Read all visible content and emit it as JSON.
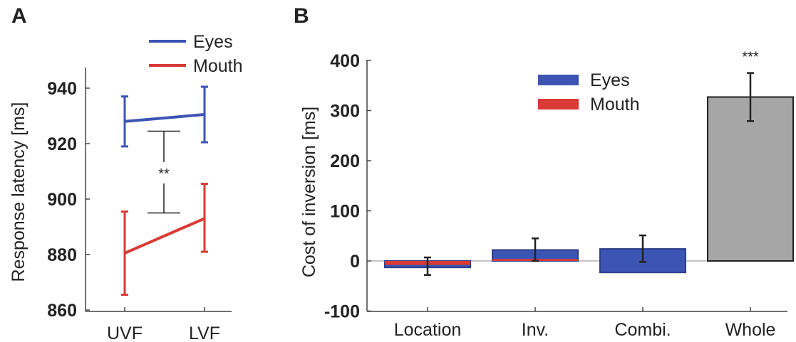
{
  "panels": {
    "a_label": "A",
    "b_label": "B"
  },
  "colors": {
    "eyes": "#3c55b4",
    "mouth": "#d93a35",
    "whole": "#a6a6a6",
    "axis": "#444444",
    "err": "#222222"
  },
  "chart_data": [
    {
      "type": "line",
      "panel": "A",
      "x": [
        "UVF",
        "LVF"
      ],
      "ylabel": "Response latency [ms]",
      "xlabel": "",
      "ylim": [
        860,
        945
      ],
      "yticks": [
        860,
        880,
        900,
        920,
        940
      ],
      "grid": false,
      "legend_position": "top",
      "series": [
        {
          "name": "Eyes",
          "color_key": "eyes",
          "values": [
            928,
            930.5
          ],
          "err_low": [
            919,
            920.5
          ],
          "err_high": [
            937,
            940.5
          ]
        },
        {
          "name": "Mouth",
          "color_key": "mouth",
          "values": [
            880.5,
            893
          ],
          "err_low": [
            865.5,
            881
          ],
          "err_high": [
            895.5,
            905.5
          ]
        }
      ],
      "annotation": {
        "text": "**",
        "between": [
          "Eyes",
          "Mouth"
        ],
        "y_top": 924.5,
        "y_bottom": 895
      }
    },
    {
      "type": "bar",
      "panel": "B",
      "categories": [
        "Location",
        "Inv.",
        "Combi.",
        "Whole"
      ],
      "ylabel": "Cost of inversion [ms]",
      "xlabel": "",
      "ylim": [
        -100,
        400
      ],
      "yticks": [
        -100,
        0,
        100,
        200,
        300,
        400
      ],
      "grid": false,
      "legend_position": "top-center",
      "legend": [
        "Eyes",
        "Mouth"
      ],
      "bars": [
        {
          "category": "Location",
          "eyes": -13,
          "mouth": -8,
          "err_low": -28,
          "err_high": 7
        },
        {
          "category": "Inv.",
          "eyes": 22,
          "mouth": 4,
          "err_low": 0,
          "err_high": 45
        },
        {
          "category": "Combi.",
          "eyes_span": [
            -23,
            24
          ],
          "err_low": -2,
          "err_high": 51
        },
        {
          "category": "Whole",
          "value": 327,
          "err_low": 279,
          "err_high": 375,
          "annotation": "***"
        }
      ]
    }
  ]
}
